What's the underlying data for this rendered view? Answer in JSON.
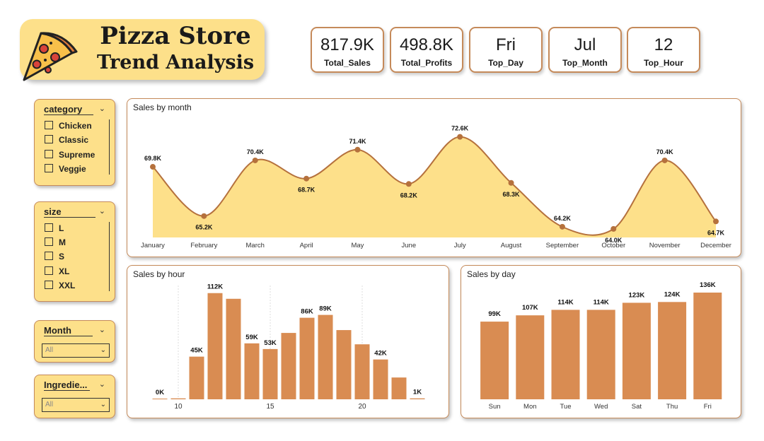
{
  "header": {
    "title_line1": "Pizza Store",
    "title_line2": "Trend Analysis",
    "logo_icon": "pizza-slice-icon"
  },
  "kpis": [
    {
      "value": "817.9K",
      "label": "Total_Sales"
    },
    {
      "value": "498.8K",
      "label": "Total_Profits"
    },
    {
      "value": "Fri",
      "label": "Top_Day"
    },
    {
      "value": "Jul",
      "label": "Top_Month"
    },
    {
      "value": "12",
      "label": "Top_Hour"
    }
  ],
  "slicers": {
    "category": {
      "title": "category",
      "items": [
        "Chicken",
        "Classic",
        "Supreme",
        "Veggie"
      ]
    },
    "size": {
      "title": "size",
      "items": [
        "L",
        "M",
        "S",
        "XL",
        "XXL"
      ]
    },
    "month": {
      "title": "Month",
      "selected": "All"
    },
    "ingredients": {
      "title": "Ingredie...",
      "selected": "All"
    }
  },
  "colors": {
    "accent": "#c58a5a",
    "bar": "#d98c52",
    "area_fill": "#fde08a",
    "line": "#b5713d"
  },
  "chart_data": [
    {
      "type": "area",
      "title": "Sales by month",
      "categories": [
        "January",
        "February",
        "March",
        "April",
        "May",
        "June",
        "July",
        "August",
        "September",
        "October",
        "November",
        "December"
      ],
      "values": [
        69.8,
        65.2,
        70.4,
        68.7,
        71.4,
        68.2,
        72.6,
        68.3,
        64.2,
        64.0,
        70.4,
        64.7
      ],
      "data_labels": [
        "69.8K",
        "65.2K",
        "70.4K",
        "68.7K",
        "71.4K",
        "68.2K",
        "72.6K",
        "68.3K",
        "64.2K",
        "64.0K",
        "70.4K",
        "64.7K"
      ],
      "ylim": [
        63.2,
        73.5
      ]
    },
    {
      "type": "bar",
      "title": "Sales by hour",
      "x": [
        9,
        10,
        11,
        12,
        13,
        14,
        15,
        16,
        17,
        18,
        19,
        20,
        21,
        22,
        23
      ],
      "values": [
        0.3,
        1,
        45,
        112,
        106,
        59,
        53,
        70,
        86,
        89,
        73,
        58,
        42,
        23,
        1
      ],
      "data_labels": [
        "0K",
        "",
        "45K",
        "112K",
        "",
        "59K",
        "53K",
        "",
        "86K",
        "89K",
        "",
        "",
        "42K",
        "",
        "1K"
      ],
      "tick_labels": [
        {
          "x": 10,
          "label": "10"
        },
        {
          "x": 15,
          "label": "15"
        },
        {
          "x": 20,
          "label": "20"
        }
      ],
      "ylim": [
        0,
        120
      ]
    },
    {
      "type": "bar",
      "title": "Sales by day",
      "categories": [
        "Sun",
        "Mon",
        "Tue",
        "Wed",
        "Sat",
        "Thu",
        "Fri"
      ],
      "values": [
        99,
        107,
        114,
        114,
        123,
        124,
        136
      ],
      "data_labels": [
        "99K",
        "107K",
        "114K",
        "114K",
        "123K",
        "124K",
        "136K"
      ],
      "ylim": [
        0,
        145
      ]
    }
  ]
}
